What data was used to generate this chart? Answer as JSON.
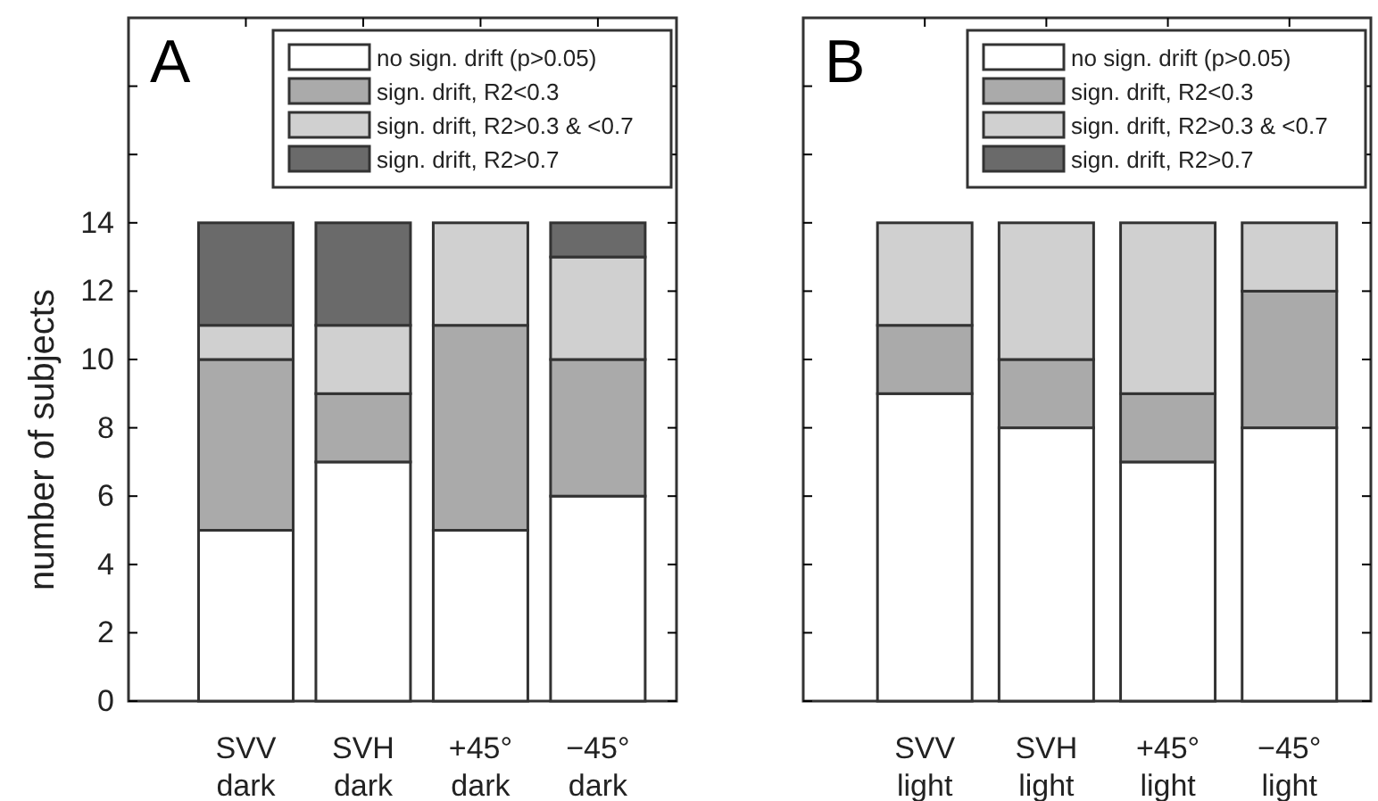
{
  "chart_data": [
    {
      "type": "bar",
      "title": "A",
      "ylabel": "number of subjects",
      "categories": [
        "SVV\ndark",
        "SVH\ndark",
        "+45°\ndark",
        "−45°\ndark"
      ],
      "stacked": true,
      "legend": "top right",
      "ylim": [
        0,
        20
      ],
      "yticks": [
        0,
        2,
        4,
        6,
        8,
        10,
        12,
        14,
        {
          "value": 16,
          "label": null
        },
        {
          "value": 18,
          "label": null
        }
      ],
      "series": [
        {
          "name": "no sign. drift (p>0.05)",
          "color": "#ffffff",
          "values": [
            5,
            7,
            5,
            6
          ]
        },
        {
          "name": "sign. drift, R2<0.3",
          "color": "#aaaaaa",
          "values": [
            5,
            2,
            6,
            4
          ]
        },
        {
          "name": "sign. drift, R2>0.3 & <0.7",
          "color": "#d0d0d0",
          "values": [
            1,
            2,
            3,
            3
          ]
        },
        {
          "name": "sign. drift, R2>0.7",
          "color": "#6a6a6a",
          "values": [
            3,
            3,
            0,
            1
          ]
        }
      ]
    },
    {
      "type": "bar",
      "title": "B",
      "categories": [
        "SVV\nlight",
        "SVH\nlight",
        "+45°\nlight",
        "−45°\nlight"
      ],
      "stacked": true,
      "legend": "top right",
      "tick_labels": "x",
      "ylim": [
        0,
        20
      ],
      "yticks": [
        {
          "value": 0,
          "label": null
        },
        {
          "value": 2,
          "label": null
        },
        {
          "value": 4,
          "label": null
        },
        {
          "value": 6,
          "label": null
        },
        {
          "value": 8,
          "label": null
        },
        {
          "value": 10,
          "label": null
        },
        {
          "value": 12,
          "label": null
        },
        {
          "value": 14,
          "label": null
        },
        {
          "value": 16,
          "label": null
        },
        {
          "value": 18,
          "label": null
        }
      ],
      "series": [
        {
          "name": "no sign. drift (p>0.05)",
          "color": "#ffffff",
          "values": [
            9,
            8,
            7,
            8
          ]
        },
        {
          "name": "sign. drift, R2<0.3",
          "color": "#aaaaaa",
          "values": [
            2,
            2,
            2,
            4
          ]
        },
        {
          "name": "sign. drift, R2>0.3 & <0.7",
          "color": "#d0d0d0",
          "values": [
            3,
            4,
            5,
            2
          ]
        },
        {
          "name": "sign. drift, R2>0.7",
          "color": "#6a6a6a",
          "values": [
            0,
            0,
            0,
            0
          ]
        }
      ]
    }
  ]
}
